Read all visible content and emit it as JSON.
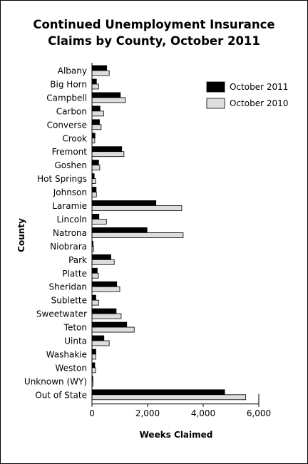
{
  "chart_data": {
    "type": "bar",
    "orientation": "horizontal",
    "title_line1": "Continued Unemployment Insurance",
    "title_line2": "Claims by County, October 2011",
    "xlabel": "Weeks Claimed",
    "ylabel": "County",
    "xlim": [
      0,
      6000
    ],
    "xticks": [
      0,
      2000,
      4000,
      6000
    ],
    "xtick_labels": [
      "0",
      "2,000",
      "4,000",
      "6,000"
    ],
    "legend_position": "top-right",
    "categories": [
      "Albany",
      "Big Horn",
      "Campbell",
      "Carbon",
      "Converse",
      "Crook",
      "Fremont",
      "Goshen",
      "Hot Springs",
      "Johnson",
      "Laramie",
      "Lincoln",
      "Natrona",
      "Niobrara",
      "Park",
      "Platte",
      "Sheridan",
      "Sublette",
      "Sweetwater",
      "Teton",
      "Uinta",
      "Washakie",
      "Weston",
      "Unknown (WY)",
      "Out of State"
    ],
    "series": [
      {
        "name": "October 2011",
        "color": "#000000",
        "values": [
          530,
          160,
          1020,
          290,
          270,
          110,
          1070,
          240,
          80,
          150,
          2300,
          250,
          1980,
          40,
          680,
          190,
          890,
          140,
          870,
          1250,
          430,
          140,
          100,
          30,
          4770
        ]
      },
      {
        "name": "October 2010",
        "color": "#dddddd",
        "values": [
          620,
          240,
          1200,
          420,
          330,
          100,
          1150,
          280,
          130,
          160,
          3230,
          520,
          3280,
          60,
          800,
          230,
          1000,
          240,
          1050,
          1520,
          620,
          140,
          130,
          40,
          5530
        ]
      }
    ]
  }
}
